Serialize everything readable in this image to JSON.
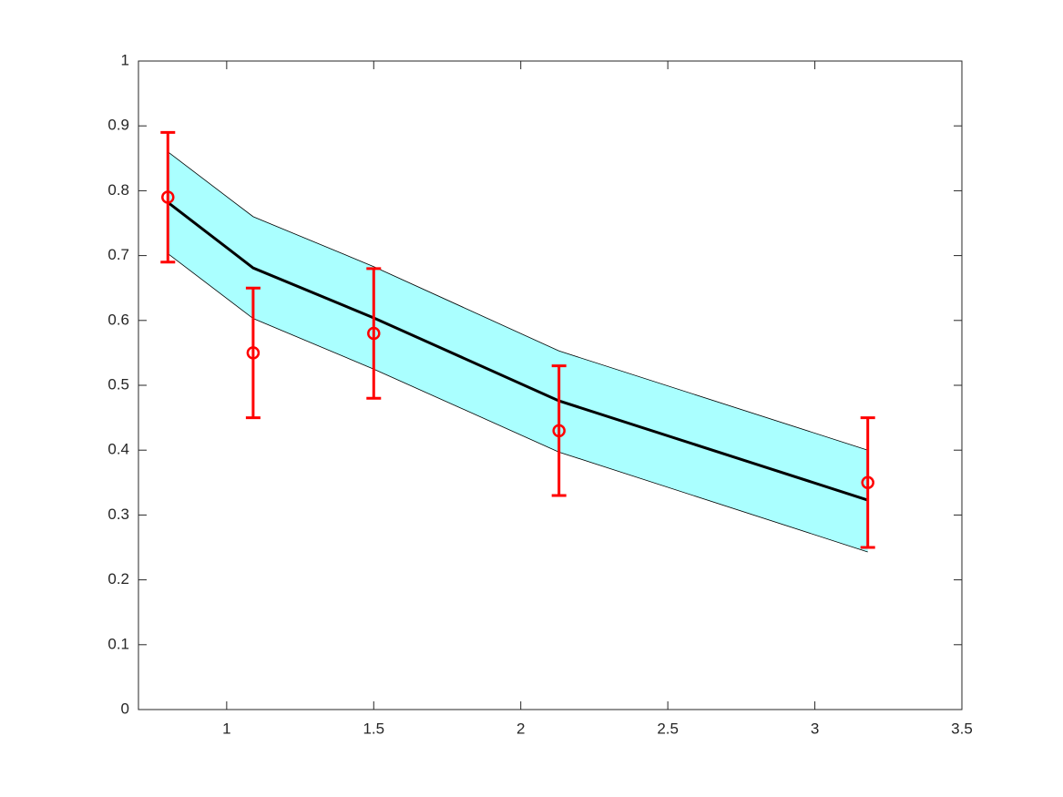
{
  "chart_data": {
    "type": "line",
    "x": [
      0.8,
      1.09,
      1.5,
      2.13,
      3.18
    ],
    "fit": {
      "color": "#000000",
      "values": [
        0.782,
        0.681,
        0.604,
        0.476,
        0.323
      ]
    },
    "band": {
      "color": "#aaffff",
      "upper": [
        0.86,
        0.76,
        0.683,
        0.553,
        0.4
      ],
      "lower": [
        0.703,
        0.603,
        0.525,
        0.397,
        0.243
      ]
    },
    "points": {
      "color": "#ff0000",
      "values": [
        0.79,
        0.55,
        0.58,
        0.43,
        0.35
      ],
      "errors": [
        0.1,
        0.1,
        0.1,
        0.1,
        0.1
      ]
    },
    "xlim": [
      0.7,
      3.5
    ],
    "ylim": [
      0,
      1
    ],
    "xticks": [
      1,
      1.5,
      2,
      2.5,
      3,
      3.5
    ],
    "yticks": [
      0,
      0.1,
      0.2,
      0.3,
      0.4,
      0.5,
      0.6,
      0.7,
      0.8,
      0.9,
      1
    ]
  }
}
